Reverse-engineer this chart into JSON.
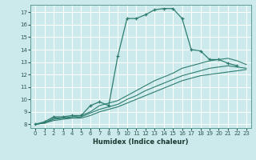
{
  "xlabel": "Humidex (Indice chaleur)",
  "bg_color": "#cce9eb",
  "grid_color": "#ffffff",
  "line_color": "#2e7d6e",
  "xlim": [
    -0.5,
    23.5
  ],
  "ylim": [
    7.7,
    17.6
  ],
  "yticks": [
    8,
    9,
    10,
    11,
    12,
    13,
    14,
    15,
    16,
    17
  ],
  "xticks": [
    0,
    1,
    2,
    3,
    4,
    5,
    6,
    7,
    8,
    9,
    10,
    11,
    12,
    13,
    14,
    15,
    16,
    17,
    18,
    19,
    20,
    21,
    22,
    23
  ],
  "line1_x": [
    0,
    1,
    2,
    3,
    4,
    5,
    6,
    7,
    8,
    9,
    10,
    11,
    12,
    13,
    14,
    15,
    16,
    17,
    18,
    19,
    20,
    21,
    22
  ],
  "line1_y": [
    8.0,
    8.2,
    8.6,
    8.6,
    8.7,
    8.7,
    9.5,
    9.8,
    9.5,
    13.5,
    16.5,
    16.5,
    16.8,
    17.2,
    17.3,
    17.3,
    16.5,
    14.0,
    13.9,
    13.2,
    13.2,
    12.9,
    12.7
  ],
  "line2_x": [
    0,
    1,
    2,
    3,
    4,
    5,
    6,
    7,
    8,
    9,
    10,
    11,
    12,
    13,
    14,
    15,
    16,
    17,
    18,
    19,
    20,
    21,
    22,
    23
  ],
  "line2_y": [
    8.0,
    8.1,
    8.5,
    8.5,
    8.6,
    8.7,
    9.0,
    9.5,
    9.7,
    9.9,
    10.3,
    10.7,
    11.1,
    11.5,
    11.8,
    12.1,
    12.5,
    12.7,
    12.9,
    13.1,
    13.2,
    13.3,
    13.1,
    12.8
  ],
  "line3_x": [
    0,
    1,
    2,
    3,
    4,
    5,
    6,
    7,
    8,
    9,
    10,
    11,
    12,
    13,
    14,
    15,
    16,
    17,
    18,
    19,
    20,
    21,
    22,
    23
  ],
  "line3_y": [
    8.0,
    8.1,
    8.4,
    8.5,
    8.5,
    8.6,
    8.9,
    9.2,
    9.4,
    9.6,
    10.0,
    10.3,
    10.7,
    11.0,
    11.3,
    11.6,
    11.9,
    12.1,
    12.3,
    12.5,
    12.6,
    12.7,
    12.6,
    12.5
  ],
  "line4_x": [
    0,
    1,
    2,
    3,
    4,
    5,
    6,
    7,
    8,
    9,
    10,
    11,
    12,
    13,
    14,
    15,
    16,
    17,
    18,
    19,
    20,
    21,
    22,
    23
  ],
  "line4_y": [
    8.0,
    8.1,
    8.3,
    8.4,
    8.5,
    8.5,
    8.7,
    9.0,
    9.2,
    9.4,
    9.7,
    10.0,
    10.3,
    10.6,
    10.9,
    11.2,
    11.5,
    11.7,
    11.9,
    12.0,
    12.1,
    12.2,
    12.3,
    12.4
  ]
}
